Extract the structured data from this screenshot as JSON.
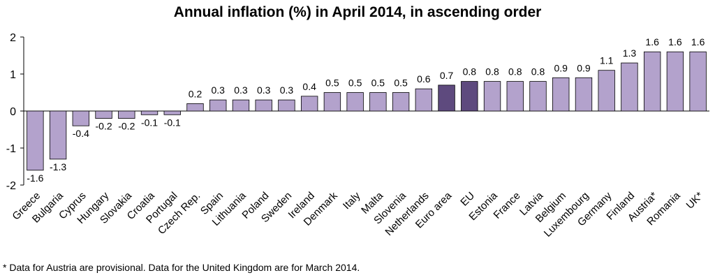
{
  "chart_data": {
    "type": "bar",
    "title": "Annual inflation (%) in April 2014, in ascending order",
    "xlabel": "",
    "ylabel": "",
    "ylim": [
      -2,
      2
    ],
    "yticks": [
      -2,
      -1,
      0,
      1,
      2
    ],
    "grid": false,
    "categories": [
      "Greece",
      "Bulgaria",
      "Cyprus",
      "Hungary",
      "Slovakia",
      "Croatia",
      "Portugal",
      "Czech Rep.",
      "Spain",
      "Lithuania",
      "Poland",
      "Sweden",
      "Ireland",
      "Denmark",
      "Italy",
      "Malta",
      "Slovenia",
      "Netherlands",
      "Euro area",
      "EU",
      "Estonia",
      "France",
      "Latvia",
      "Belgium",
      "Luxembourg",
      "Germany",
      "Finland",
      "Austria*",
      "Romania",
      "UK*"
    ],
    "values": [
      -1.6,
      -1.3,
      -0.4,
      -0.2,
      -0.2,
      -0.1,
      -0.1,
      0.2,
      0.3,
      0.3,
      0.3,
      0.3,
      0.4,
      0.5,
      0.5,
      0.5,
      0.5,
      0.6,
      0.7,
      0.8,
      0.8,
      0.8,
      0.8,
      0.9,
      0.9,
      1.1,
      1.3,
      1.6,
      1.6,
      1.6
    ],
    "value_labels": [
      "-1.6",
      "-1.3",
      "-0.4",
      "-0.2",
      "-0.2",
      "-0.1",
      "-0.1",
      "0.2",
      "0.3",
      "0.3",
      "0.3",
      "0.3",
      "0.4",
      "0.5",
      "0.5",
      "0.5",
      "0.5",
      "0.6",
      "0.7",
      "0.8",
      "0.8",
      "0.8",
      "0.8",
      "0.9",
      "0.9",
      "1.1",
      "1.3",
      "1.6",
      "1.6",
      "1.6"
    ],
    "highlighted": [
      "Euro area",
      "EU"
    ],
    "colors": {
      "bar": "#b3a2cc",
      "bar_highlight": "#5e4a7e",
      "bar_stroke": "#000000"
    }
  },
  "footnote": "* Data for Austria are provisional. Data for the United Kingdom are for March 2014."
}
